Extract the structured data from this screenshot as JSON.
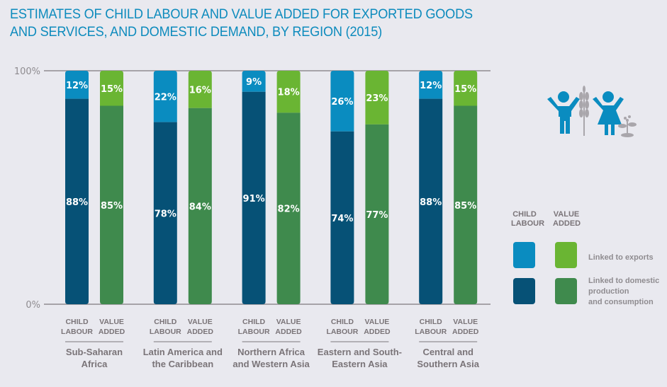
{
  "chart_data": {
    "type": "bar",
    "stacked": true,
    "normalized": true,
    "title": "ESTIMATES OF CHILD LABOUR AND VALUE ADDED FOR EXPORTED GOODS AND SERVICES, AND DOMESTIC DEMAND, BY REGION (2015)",
    "title_lines": [
      "ESTIMATES OF CHILD LABOUR AND VALUE ADDED FOR EXPORTED GOODS",
      "AND SERVICES, AND DOMESTIC DEMAND, BY REGION (2015)"
    ],
    "ylim": [
      0,
      100
    ],
    "yticks": [
      "0%",
      "100%"
    ],
    "bar_labels": [
      "CHILD LABOUR",
      "VALUE ADDED"
    ],
    "categories": [
      "Sub-Saharan Africa",
      "Latin America and the Caribbean",
      "Northern Africa and Western Asia",
      "Eastern and South-Eastern Asia",
      "Central and Southern Asia"
    ],
    "category_lines": [
      [
        "Sub-Saharan",
        "Africa"
      ],
      [
        "Latin America and",
        "the Caribbean"
      ],
      [
        "Northern Africa",
        "and Western Asia"
      ],
      [
        "Eastern and South-",
        "Eastern Asia"
      ],
      [
        "Central and",
        "Southern Asia"
      ]
    ],
    "series": [
      {
        "name": "Child labour linked to exports",
        "values": [
          12,
          22,
          9,
          26,
          12
        ],
        "color": "#0a8cc0"
      },
      {
        "name": "Child labour linked to domestic production and consumption",
        "values": [
          88,
          78,
          91,
          74,
          88
        ],
        "color": "#065176"
      },
      {
        "name": "Value added linked to exports",
        "values": [
          15,
          16,
          18,
          23,
          15
        ],
        "color": "#6ab533"
      },
      {
        "name": "Value added linked to domestic production and consumption",
        "values": [
          85,
          84,
          82,
          77,
          85
        ],
        "color": "#3f8a4d"
      }
    ],
    "legend": {
      "placement": "right",
      "column_headers": [
        "CHILD LABOUR",
        "VALUE ADDED"
      ],
      "rows": [
        "Linked to exports",
        "Linked to domestic production and consumption"
      ],
      "row_lines": [
        [
          "Linked to exports"
        ],
        [
          "Linked to domestic",
          "production",
          "and consumption"
        ]
      ]
    }
  },
  "labels": {
    "child": "CHILD",
    "labour": "LABOUR",
    "value": "VALUE",
    "added": "ADDED"
  },
  "icon": "children-with-crops-icon"
}
